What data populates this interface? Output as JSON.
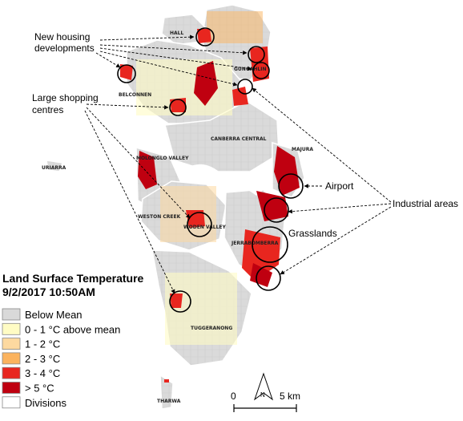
{
  "legend": {
    "title_line1": "Land Surface Temperature",
    "title_line2": "9/2/2017 10:50AM",
    "items": [
      {
        "label": "Below Mean",
        "color": "#d9d9d9"
      },
      {
        "label": "0 - 1 °C above mean",
        "color": "#fffcc4"
      },
      {
        "label": "1 - 2 °C",
        "color": "#fdd9a0"
      },
      {
        "label": "2 - 3 °C",
        "color": "#fbb35e"
      },
      {
        "label": "3 - 4 °C",
        "color": "#e8261f"
      },
      {
        "label": "> 5 °C",
        "color": "#bf0010"
      },
      {
        "label": "Divisions",
        "color": "#ffffff"
      }
    ]
  },
  "place_labels": {
    "hall": "HALL",
    "gungahlin": "GUNGAHLIN",
    "belconnen": "BELCONNEN",
    "canberra_central": "CANBERRA CENTRAL",
    "majura": "MAJURA",
    "uriarra": "URIARRA",
    "molonglo_valley": "MOLONGLO VALLEY",
    "weston_creek": "WESTON CREEK",
    "woden_valley": "WODEN VALLEY",
    "jerrabomberra": "JERRABOMBERRA",
    "tuggeranong": "TUGGERANONG",
    "tharwa": "THARWA"
  },
  "annotations": {
    "new_housing_line1": "New housing",
    "new_housing_line2": "developments",
    "shopping_line1": "Large shopping",
    "shopping_line2": "centres",
    "airport": "Airport",
    "industrial": "Industrial areas",
    "grasslands": "Grasslands"
  },
  "scale": {
    "start": "0",
    "end": "5 km",
    "north": "N"
  }
}
